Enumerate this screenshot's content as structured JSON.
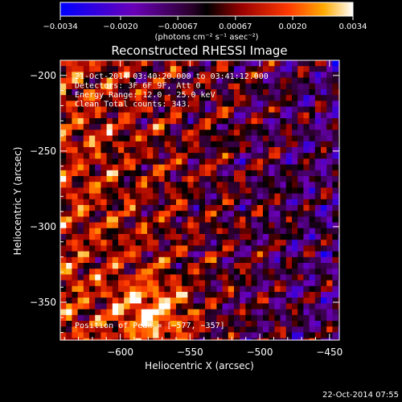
{
  "chart_data": {
    "type": "heatmap",
    "title": "Reconstructed RHESSI Image",
    "xlabel": "Heliocentric X (arcsec)",
    "ylabel": "Heliocentric Y (arcsec)",
    "xlim": [
      -643,
      -443
    ],
    "ylim": [
      -375,
      -190
    ],
    "x_ticks": [
      -600,
      -550,
      -500,
      -450
    ],
    "y_ticks": [
      -200,
      -250,
      -300,
      -350
    ],
    "x_tick_labels": [
      "−600",
      "−550",
      "−500",
      "−450"
    ],
    "y_tick_labels": [
      "−200",
      "−250",
      "−300",
      "−350"
    ],
    "colorbar": {
      "range": [
        -0.0034,
        0.0034
      ],
      "ticks": [
        -0.0034,
        -0.002,
        -0.00067,
        0.00067,
        0.002,
        0.0034
      ],
      "tick_labels": [
        "−0.0034",
        "−0.0020",
        "−0.00067",
        "0.00067",
        "0.0020",
        "0.0034"
      ],
      "units": "(photons cm⁻² s⁻¹ asec⁻²)"
    },
    "annotations": [
      "21-Oct-2014 03:40:20.000 to 03:41:12.000",
      "Detectors: 3F 6F 9F, Att 0",
      "Energy Range: 12.0 - 25.0 keV",
      "Clean    Total counts: 343."
    ],
    "peak": {
      "label": "Position of Peak = [−577, −357]",
      "x": -577,
      "y": -357
    },
    "footer_date": "22-Oct-2014 07:55"
  }
}
